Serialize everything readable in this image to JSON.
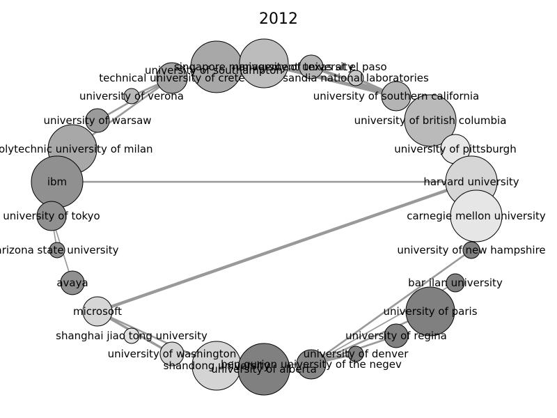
{
  "title": "2012",
  "colors": {
    "edge": "#999999",
    "node_stroke": "#000000",
    "label": "#000000"
  },
  "nodes": [
    {
      "id": "singapore management university",
      "label": "singapore management university",
      "fill": "#a8a8a8"
    },
    {
      "id": "university of texas at el paso",
      "label": "university of texas at el paso",
      "fill": "#bcbcbc"
    },
    {
      "id": "university of southampton",
      "label": "university of southampton",
      "fill": "#b4b4b4"
    },
    {
      "id": "sandia national laboratories",
      "label": "sandia national laboratories",
      "fill": "#c8c8c8"
    },
    {
      "id": "technical university of crete",
      "label": "technical university of crete",
      "fill": "#a4a4a4"
    },
    {
      "id": "university of verona",
      "label": "university of verona",
      "fill": "#b8b8b8"
    },
    {
      "id": "university of southern california",
      "label": "university of southern california",
      "fill": "#b4b4b4"
    },
    {
      "id": "university of warsaw",
      "label": "university of warsaw",
      "fill": "#9a9a9a"
    },
    {
      "id": "university of british columbia",
      "label": "university of british columbia",
      "fill": "#bababa"
    },
    {
      "id": "polytechnic university of milan",
      "label": "polytechnic university of milan",
      "fill": "#a8a8a8"
    },
    {
      "id": "university of pittsburgh",
      "label": "university of pittsburgh",
      "fill": "#e8e8e8"
    },
    {
      "id": "ibm",
      "label": "ibm",
      "fill": "#909090"
    },
    {
      "id": "harvard university",
      "label": "harvard university",
      "fill": "#d6d6d6"
    },
    {
      "id": "university of tokyo",
      "label": "university of tokyo",
      "fill": "#909090"
    },
    {
      "id": "carnegie mellon university",
      "label": "carnegie mellon university",
      "fill": "#e6e6e6"
    },
    {
      "id": "arizona state university",
      "label": "arizona state university",
      "fill": "#909090"
    },
    {
      "id": "university of new hampshire",
      "label": "university of new hampshire",
      "fill": "#808080"
    },
    {
      "id": "avaya",
      "label": "avaya",
      "fill": "#909090"
    },
    {
      "id": "bar ilan university",
      "label": "bar ilan university",
      "fill": "#808080"
    },
    {
      "id": "microsoft",
      "label": "microsoft",
      "fill": "#d6d6d6"
    },
    {
      "id": "university of paris",
      "label": "university of paris",
      "fill": "#808080"
    },
    {
      "id": "shanghai jiao tong university",
      "label": "shanghai jiao tong university",
      "fill": "#e0e0e0"
    },
    {
      "id": "university of regina",
      "label": "university of regina",
      "fill": "#808080"
    },
    {
      "id": "university of washington",
      "label": "university of washington",
      "fill": "#d4d4d4"
    },
    {
      "id": "university of denver",
      "label": "university of denver",
      "fill": "#808080"
    },
    {
      "id": "shandong university",
      "label": "shandong university",
      "fill": "#d4d4d4"
    },
    {
      "id": "ben gurion university of the negev",
      "label": "ben gurion university of the negev",
      "fill": "#888888"
    },
    {
      "id": "university of alberta",
      "label": "university of alberta",
      "fill": "#808080"
    }
  ],
  "edges": [
    {
      "source": "ibm",
      "target": "harvard university",
      "weight": 2
    },
    {
      "source": "microsoft",
      "target": "harvard university",
      "weight": 4
    },
    {
      "source": "microsoft",
      "target": "university of washington",
      "weight": 3
    },
    {
      "source": "microsoft",
      "target": "shandong university",
      "weight": 2
    },
    {
      "source": "university of tokyo",
      "target": "avaya",
      "weight": 1
    },
    {
      "source": "university of tokyo",
      "target": "arizona state university",
      "weight": 1
    },
    {
      "source": "university of verona",
      "target": "technical university of crete",
      "weight": 2
    },
    {
      "source": "university of warsaw",
      "target": "technical university of crete",
      "weight": 2
    },
    {
      "source": "polytechnic university of milan",
      "target": "technical university of crete",
      "weight": 2
    },
    {
      "source": "university of texas at el paso",
      "target": "university of southern california",
      "weight": 5
    },
    {
      "source": "university of southampton",
      "target": "university of southern california",
      "weight": 4
    },
    {
      "source": "sandia national laboratories",
      "target": "university of southern california",
      "weight": 3
    },
    {
      "source": "university of british columbia",
      "target": "harvard university",
      "weight": 2
    },
    {
      "source": "university of pittsburgh",
      "target": "harvard university",
      "weight": 2
    },
    {
      "source": "ben gurion university of the negev",
      "target": "university of new hampshire",
      "weight": 2
    },
    {
      "source": "ben gurion university of the negev",
      "target": "university of paris",
      "weight": 2
    },
    {
      "source": "ben gurion university of the negev",
      "target": "university of regina",
      "weight": 2
    },
    {
      "source": "ben gurion university of the negev",
      "target": "university of denver",
      "weight": 2
    },
    {
      "source": "ben gurion university of the negev",
      "target": "bar ilan university",
      "weight": 1
    },
    {
      "source": "shandong university",
      "target": "ben gurion university of the negev",
      "weight": 1
    },
    {
      "source": "university of alberta",
      "target": "university of denver",
      "weight": 1
    }
  ]
}
